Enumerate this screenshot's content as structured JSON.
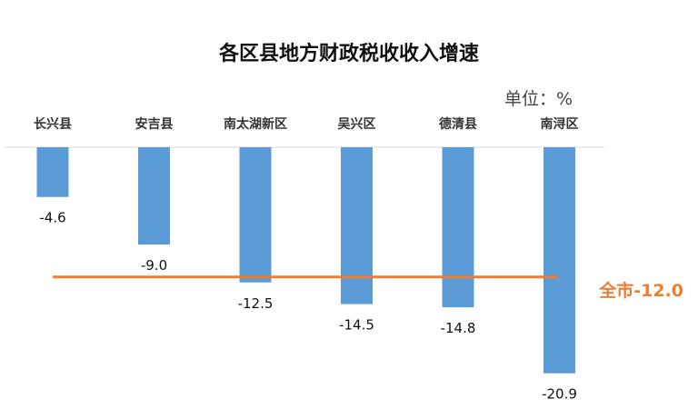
{
  "chart_data": {
    "type": "bar",
    "title": "各区县地方财政税收收入增速",
    "unit_label": "单位：%",
    "categories": [
      "长兴县",
      "安吉县",
      "南太湖新区",
      "吴兴区",
      "德清县",
      "南浔区"
    ],
    "series": [
      {
        "values": [
          -4.6,
          -9.0,
          -12.5,
          -14.5,
          -14.8,
          -20.9
        ]
      }
    ],
    "value_labels": [
      "-4.6",
      "-9.0",
      "-12.5",
      "-14.5",
      "-14.8",
      "-20.9"
    ],
    "ylim": [
      -21.5,
      0
    ],
    "grid": false,
    "reference_line": {
      "label": "全市-12.0",
      "value": -12.0
    },
    "colors": {
      "bar": "#5B9BD5",
      "reference_line": "#ED7D31",
      "axis": "#D9D9D9"
    }
  }
}
